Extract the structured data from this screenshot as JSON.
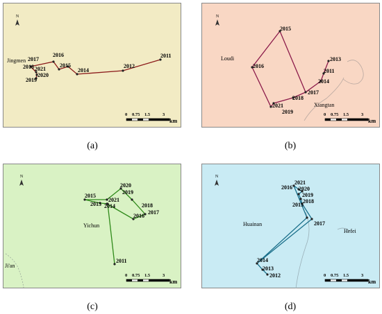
{
  "panels": [
    {
      "id": "a",
      "caption": "(a)",
      "city_labels": [
        "Jingmen"
      ],
      "route_color": "#8b1a1a",
      "background": "#f2ebc4",
      "points": [
        {
          "year": "2011"
        },
        {
          "year": "2012"
        },
        {
          "year": "2014"
        },
        {
          "year": "2015"
        },
        {
          "year": "2016"
        },
        {
          "year": "2017"
        },
        {
          "year": "2018"
        },
        {
          "year": "2021"
        },
        {
          "year": "2020"
        },
        {
          "year": "2019"
        }
      ],
      "scale_bar": {
        "ticks": [
          "0",
          "0.75",
          "1.5",
          "3"
        ],
        "unit": "km"
      },
      "north_label": "N"
    },
    {
      "id": "b",
      "caption": "(b)",
      "city_labels": [
        "Loudi",
        "Xiangtan"
      ],
      "route_color": "#8b1a4a",
      "background": "#f9d7c4",
      "points": [
        {
          "year": "2013"
        },
        {
          "year": "2011"
        },
        {
          "year": "2014"
        },
        {
          "year": "2017"
        },
        {
          "year": "2018"
        },
        {
          "year": "2021"
        },
        {
          "year": "2019"
        },
        {
          "year": "2016"
        },
        {
          "year": "2015"
        }
      ],
      "scale_bar": {
        "ticks": [
          "0",
          "0.75",
          "1.5",
          "3"
        ],
        "unit": "km"
      },
      "north_label": "N"
    },
    {
      "id": "c",
      "caption": "(c)",
      "city_labels": [
        "Yichun",
        "Ji'an"
      ],
      "route_color": "#2f8a1a",
      "background": "#d9f2c4",
      "points": [
        {
          "year": "2011"
        },
        {
          "year": "2014"
        },
        {
          "year": "2013"
        },
        {
          "year": "2015"
        },
        {
          "year": "2021"
        },
        {
          "year": "2020"
        },
        {
          "year": "2019"
        },
        {
          "year": "2018"
        },
        {
          "year": "2017"
        },
        {
          "year": "2016"
        }
      ],
      "scale_bar": {
        "ticks": [
          "0",
          "0.75",
          "1.5",
          "3"
        ],
        "unit": "km"
      },
      "north_label": "N"
    },
    {
      "id": "d",
      "caption": "(d)",
      "city_labels": [
        "Huainan",
        "Hefei"
      ],
      "route_color": "#1a6f8a",
      "background": "#c9ebf4",
      "points": [
        {
          "year": "2012"
        },
        {
          "year": "2013"
        },
        {
          "year": "2014"
        },
        {
          "year": "2017"
        },
        {
          "year": "2015"
        },
        {
          "year": "2018"
        },
        {
          "year": "2019"
        },
        {
          "year": "2020"
        },
        {
          "year": "2021"
        },
        {
          "year": "2016"
        }
      ],
      "scale_bar": {
        "ticks": [
          "0",
          "0.75",
          "1.5",
          "3"
        ],
        "unit": "km"
      },
      "north_label": "N"
    }
  ]
}
